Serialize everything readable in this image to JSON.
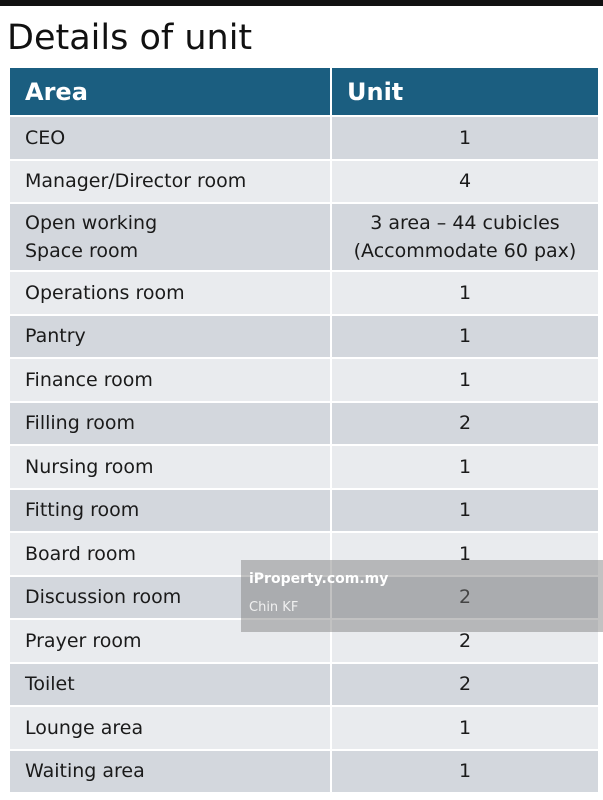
{
  "header": {
    "title": "Details of unit"
  },
  "table": {
    "columns": [
      "Area",
      "Unit"
    ],
    "rows": [
      [
        "CEO",
        "1"
      ],
      [
        "Manager/Director room",
        "4"
      ],
      [
        "Open working\nSpace room",
        "3 area – 44 cubicles\n(Accommodate 60 pax)"
      ],
      [
        "Operations room",
        "1"
      ],
      [
        "Pantry",
        "1"
      ],
      [
        "Finance room",
        "1"
      ],
      [
        "Filling room",
        "2"
      ],
      [
        "Nursing  room",
        "1"
      ],
      [
        "Fitting room",
        "1"
      ],
      [
        "Board room",
        "1"
      ],
      [
        "Discussion room",
        "2"
      ],
      [
        "Prayer room",
        "2"
      ],
      [
        "Toilet",
        "2"
      ],
      [
        "Lounge area",
        "1"
      ],
      [
        "Waiting area",
        "1"
      ]
    ]
  },
  "watermark": {
    "brand": "iProperty.com.my",
    "author": "Chin KF"
  }
}
